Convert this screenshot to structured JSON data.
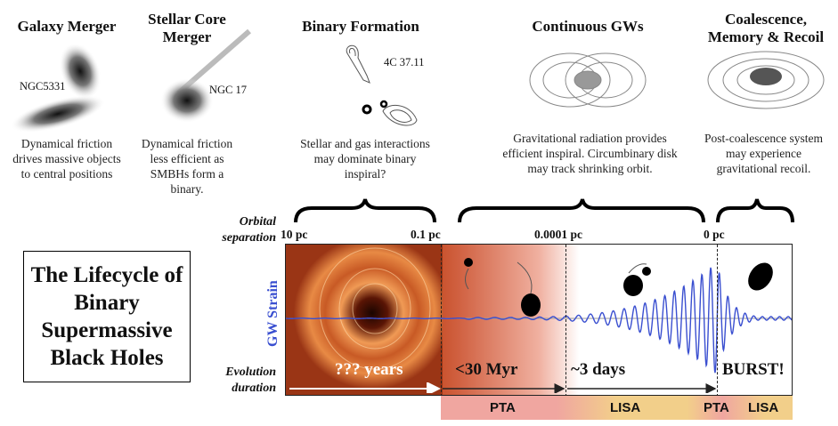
{
  "stages": [
    {
      "title": "Galaxy Merger",
      "object": "NGC5331",
      "caption": "Dynamical friction drives massive objects to central positions"
    },
    {
      "title": "Stellar Core Merger",
      "object": "NGC 17",
      "caption": "Dynamical friction less efficient as SMBHs form a binary."
    },
    {
      "title": "Binary Formation",
      "object": "4C 37.11",
      "caption": "Stellar and gas interactions may dominate binary inspiral?"
    },
    {
      "title": "Continuous GWs",
      "caption": "Gravitational radiation provides efficient inspiral. Circumbinary disk may track shrinking orbit."
    },
    {
      "title": "Coalescence, Memory & Recoil",
      "caption": "Post-coalescence system may experience gravitational recoil."
    }
  ],
  "main_title": "The Lifecycle of Binary Supermassive Black Holes",
  "axis": {
    "separation_label": "Orbital separation",
    "strain_label": "GW Strain",
    "duration_label": "Evolution duration",
    "separations": [
      "10 pc",
      "0.1 pc",
      "0.0001 pc",
      "0 pc"
    ],
    "durations": [
      "??? years",
      "<30 Myr",
      "~3 days",
      "BURST!"
    ]
  },
  "detectors": [
    "PTA",
    "LISA",
    "PTA",
    "LISA"
  ],
  "colors": {
    "strain": "#3a4fd0",
    "pta": "#f0a6a0",
    "lisa": "#f2cf8a"
  }
}
